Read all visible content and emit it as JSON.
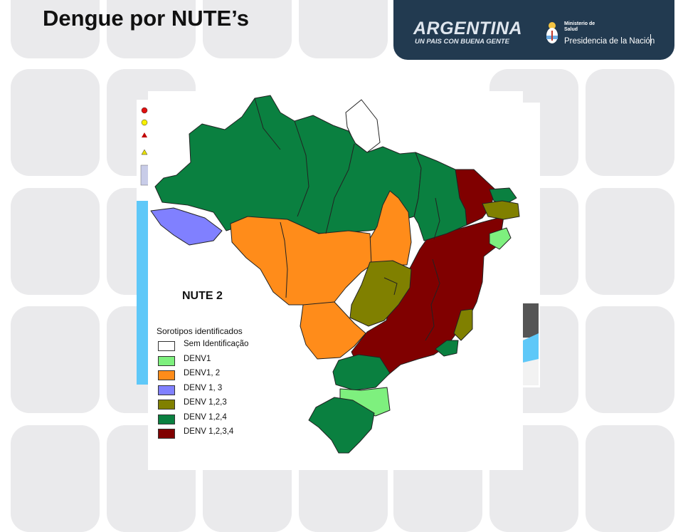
{
  "slide": {
    "title": "Dengue por NUTE’s"
  },
  "header": {
    "brand_main": "ARGENTINA",
    "brand_sub": "UN PAIS CON BUENA GENTE",
    "ministry_line1": "Ministerio de",
    "ministry_line2": "Salud",
    "presidency": "Presidencia de la Nación",
    "banner_color": "#223a50"
  },
  "map": {
    "region_label": "NUTE 2",
    "legend_title": "Sorotipos identificados",
    "legend_items": [
      {
        "label": "Sem Identificação",
        "color": "#ffffff"
      },
      {
        "label": "DENV1",
        "color": "#7ef07e"
      },
      {
        "label": "DENV1, 2",
        "color": "#ff8c1a"
      },
      {
        "label": "DENV 1, 3",
        "color": "#8080ff"
      },
      {
        "label": "DENV 1,2,3",
        "color": "#808000"
      },
      {
        "label": "DENV 1,2,4",
        "color": "#0a8040"
      },
      {
        "label": "DENV 1,2,3,4",
        "color": "#800000"
      }
    ]
  }
}
